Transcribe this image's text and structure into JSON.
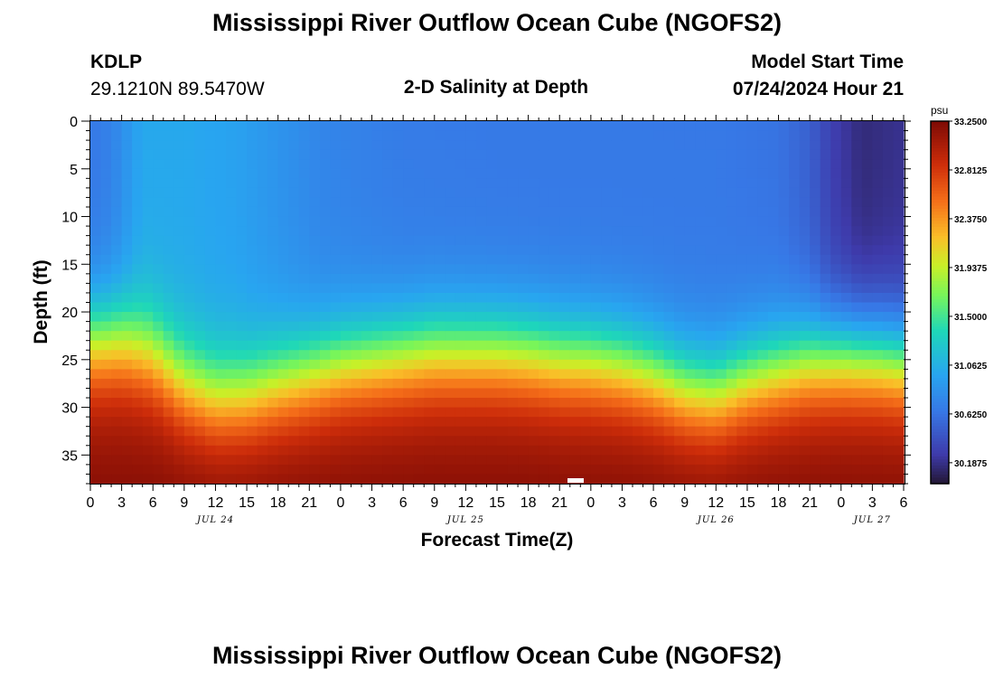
{
  "page": {
    "title": "Mississippi River Outflow Ocean Cube (NGOFS2)",
    "title_repeat": "Mississippi River Outflow Ocean Cube (NGOFS2)",
    "station": "KDLP",
    "location": "29.1210N  89.5470W",
    "subtitle": "2-D Salinity at Depth",
    "start_label": "Model Start Time",
    "start_time": "07/24/2024 Hour 21"
  },
  "chart_data": {
    "type": "heatmap",
    "title": "2-D Salinity at Depth",
    "xlabel": "Forecast Time(Z)",
    "ylabel": "Depth (ft)",
    "x_range_hours": [
      0,
      78
    ],
    "x_tick_labels": [
      "0",
      "3",
      "6",
      "9",
      "12",
      "15",
      "18",
      "21",
      "0",
      "3",
      "6",
      "9",
      "12",
      "15",
      "18",
      "21",
      "0",
      "3",
      "6",
      "9",
      "12",
      "15",
      "18",
      "21",
      "0",
      "3",
      "6"
    ],
    "date_labels": [
      {
        "label": "JUL 24",
        "at_hour": 12
      },
      {
        "label": "JUL 25",
        "at_hour": 36
      },
      {
        "label": "JUL 26",
        "at_hour": 60
      },
      {
        "label": "JUL 27",
        "at_hour": 75
      }
    ],
    "ylim": [
      0,
      38
    ],
    "y_inverted": true,
    "y_tick_labels": [
      "0",
      "5",
      "10",
      "15",
      "20",
      "25",
      "30",
      "35"
    ],
    "colorbar": {
      "units": "psu",
      "min": 30.0,
      "max": 33.25,
      "tick_labels": [
        "33.2500",
        "32.8125",
        "32.3750",
        "31.9375",
        "31.5000",
        "31.0625",
        "30.6250",
        "30.1875"
      ]
    },
    "halocline_depth_ft": {
      "hours": [
        0,
        3,
        6,
        9,
        12,
        15,
        18,
        21,
        24,
        27,
        30,
        33,
        36,
        39,
        42,
        45,
        48,
        51,
        54,
        57,
        60,
        63,
        66,
        69,
        72,
        75,
        78
      ],
      "depth": [
        23,
        23,
        24.5,
        27.5,
        29,
        28.7,
        27.5,
        26.5,
        25.5,
        25,
        24.5,
        24,
        24,
        24,
        24.3,
        24.8,
        25,
        25.5,
        26.5,
        28,
        28.5,
        27,
        26,
        25,
        24.5,
        24.5,
        25
      ]
    },
    "surface_salinity_psu": {
      "hours": [
        0,
        2,
        5,
        9,
        14,
        18,
        22,
        30,
        40,
        50,
        60,
        66,
        69,
        71,
        74,
        78
      ],
      "values": [
        30.65,
        30.72,
        31.0,
        31.0,
        30.95,
        30.85,
        30.75,
        30.68,
        30.66,
        30.66,
        30.66,
        30.62,
        30.5,
        30.3,
        30.15,
        30.2
      ]
    },
    "bottom_salinity_psu": 33.2
  }
}
